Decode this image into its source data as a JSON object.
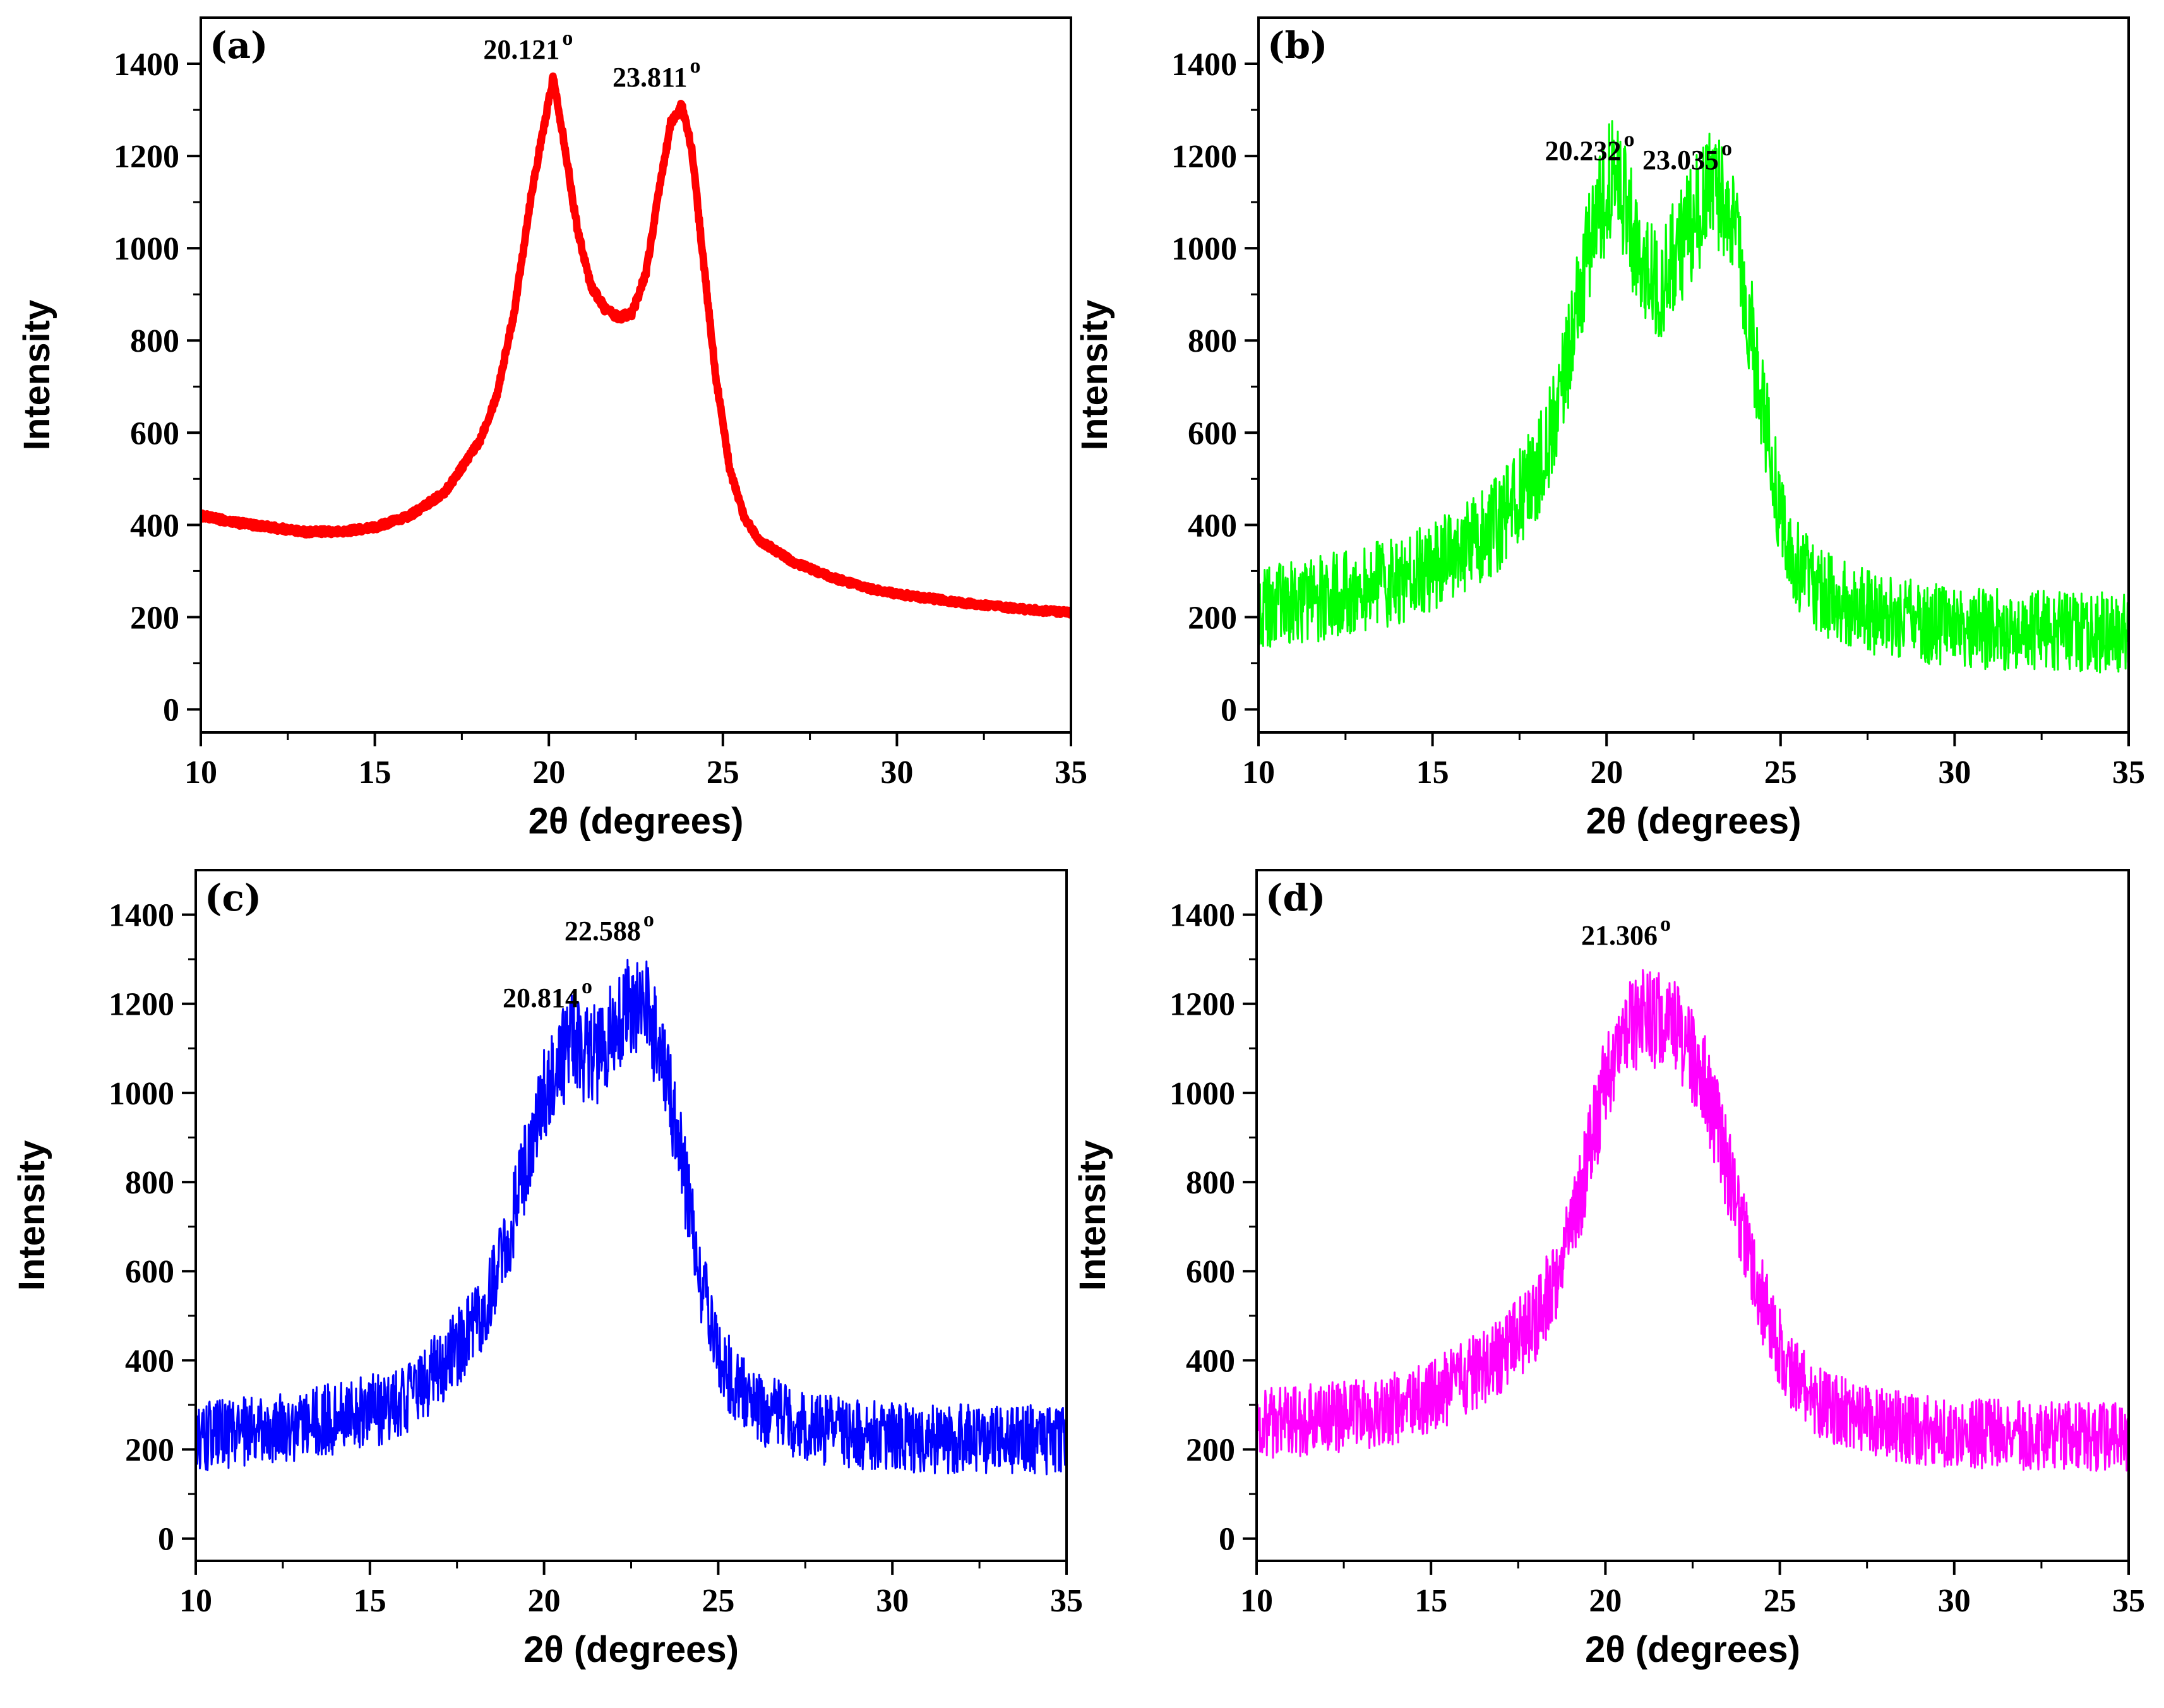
{
  "figure_caption": "",
  "chart_data": [
    {
      "type": "line",
      "panel": "(a)",
      "color": "#ff0000",
      "xlabel": "2θ (degrees)",
      "ylabel": "Intensity",
      "xlim": [
        10,
        35
      ],
      "ylim": [
        -50,
        1500
      ],
      "xticks": [
        10,
        15,
        20,
        25,
        30,
        35
      ],
      "yticks": [
        0,
        200,
        400,
        600,
        800,
        1000,
        1200,
        1400
      ],
      "noise": 8,
      "series": [
        {
          "name": "(a)",
          "x": [
            10,
            11,
            12,
            13,
            14,
            15,
            16,
            17,
            18,
            18.5,
            19,
            19.5,
            20,
            20.121,
            20.4,
            20.8,
            21.2,
            21.6,
            22,
            22.4,
            22.8,
            23.2,
            23.5,
            23.811,
            24.1,
            24.4,
            24.8,
            25.2,
            25.6,
            26,
            27,
            28,
            29,
            30,
            31,
            32,
            33,
            34,
            35
          ],
          "values": [
            420,
            405,
            395,
            385,
            385,
            395,
            420,
            470,
            580,
            680,
            860,
            1120,
            1320,
            1370,
            1250,
            1050,
            920,
            870,
            850,
            860,
            950,
            1140,
            1270,
            1310,
            1220,
            1000,
            720,
            520,
            420,
            370,
            320,
            290,
            265,
            250,
            240,
            230,
            222,
            215,
            210
          ]
        }
      ],
      "annotations": [
        {
          "text": "20.121",
          "sup": "o",
          "x": 20.121,
          "y": 1370
        },
        {
          "text": "23.811",
          "sup": "o",
          "x": 23.811,
          "y": 1310
        }
      ]
    },
    {
      "type": "line",
      "panel": "(b)",
      "color": "#00ff00",
      "xlabel": "2θ (degrees)",
      "ylabel": "Intensity",
      "xlim": [
        10,
        35
      ],
      "ylim": [
        -50,
        1500
      ],
      "xticks": [
        10,
        15,
        20,
        25,
        30,
        35
      ],
      "yticks": [
        0,
        200,
        400,
        600,
        800,
        1000,
        1200,
        1400
      ],
      "noise": 130,
      "series": [
        {
          "name": "(b)",
          "x": [
            10,
            11,
            12,
            13,
            14,
            15,
            16,
            17,
            18,
            18.5,
            19,
            19.5,
            20,
            20.232,
            20.6,
            21,
            21.5,
            22,
            22.5,
            23.035,
            23.5,
            24,
            24.5,
            25,
            25.5,
            26,
            27,
            28,
            29,
            30,
            31,
            32,
            33,
            34,
            35
          ],
          "values": [
            215,
            230,
            245,
            260,
            280,
            310,
            350,
            410,
            520,
            620,
            800,
            1000,
            1130,
            1150,
            1080,
            960,
            920,
            980,
            1070,
            1130,
            1080,
            900,
            650,
            420,
            310,
            260,
            225,
            200,
            190,
            180,
            175,
            172,
            170,
            168,
            165
          ]
        }
      ],
      "annotations": [
        {
          "text": "20.232",
          "sup": "o",
          "x": 20.232,
          "y": 1150
        },
        {
          "text": "23.035 ",
          "sup": "o",
          "x": 23.035,
          "y": 1130
        }
      ]
    },
    {
      "type": "line",
      "panel": "(c)",
      "color": "#0000ff",
      "xlabel": "2θ (degrees)",
      "ylabel": "Intensity",
      "xlim": [
        10,
        35
      ],
      "ylim": [
        -50,
        1500
      ],
      "xticks": [
        10,
        15,
        20,
        25,
        30,
        35
      ],
      "yticks": [
        0,
        200,
        400,
        600,
        800,
        1000,
        1200,
        1400
      ],
      "noise": 110,
      "series": [
        {
          "name": "(c)",
          "x": [
            10,
            11,
            12,
            13,
            14,
            15,
            16,
            17,
            18,
            18.5,
            19,
            19.5,
            20,
            20.5,
            20.814,
            21.2,
            21.6,
            22,
            22.588,
            23,
            23.5,
            24,
            24.5,
            25,
            25.5,
            26,
            27,
            28,
            29,
            30,
            31,
            32,
            33,
            34,
            35
          ],
          "values": [
            225,
            235,
            245,
            255,
            270,
            285,
            310,
            380,
            470,
            560,
            680,
            850,
            1000,
            1080,
            1110,
            1080,
            1090,
            1160,
            1200,
            1180,
            1040,
            820,
            580,
            420,
            340,
            300,
            265,
            245,
            235,
            228,
            225,
            224,
            223,
            222,
            220
          ]
        }
      ],
      "annotations": [
        {
          "text": "20.814 ",
          "sup": "o",
          "x": 20.814,
          "y": 1150
        },
        {
          "text": "22.588 ",
          "sup": "o",
          "x": 22.588,
          "y": 1300
        }
      ]
    },
    {
      "type": "line",
      "panel": "(d)",
      "color": "#ff00ff",
      "xlabel": "2θ (degrees)",
      "ylabel": "Intensity",
      "xlim": [
        10,
        35
      ],
      "ylim": [
        -50,
        1500
      ],
      "xticks": [
        10,
        15,
        20,
        25,
        30,
        35
      ],
      "yticks": [
        0,
        200,
        400,
        600,
        800,
        1000,
        1200,
        1400
      ],
      "noise": 110,
      "series": [
        {
          "name": "(d)",
          "x": [
            10,
            11,
            12,
            13,
            14,
            15,
            16,
            17,
            18,
            18.5,
            19,
            19.5,
            20,
            20.5,
            21,
            21.306,
            21.8,
            22.3,
            22.8,
            23.3,
            23.8,
            24.3,
            24.8,
            25.3,
            25.8,
            26.3,
            27,
            28,
            29,
            30,
            31,
            32,
            33,
            34,
            35
          ],
          "values": [
            255,
            262,
            270,
            280,
            295,
            320,
            360,
            410,
            490,
            570,
            680,
            850,
            1020,
            1120,
            1160,
            1165,
            1150,
            1120,
            1040,
            900,
            730,
            580,
            460,
            380,
            330,
            300,
            275,
            255,
            245,
            238,
            235,
            232,
            230,
            228,
            225
          ]
        }
      ],
      "annotations": [
        {
          "text": "21.306 ",
          "sup": "o",
          "x": 21.306,
          "y": 1290
        }
      ]
    }
  ]
}
